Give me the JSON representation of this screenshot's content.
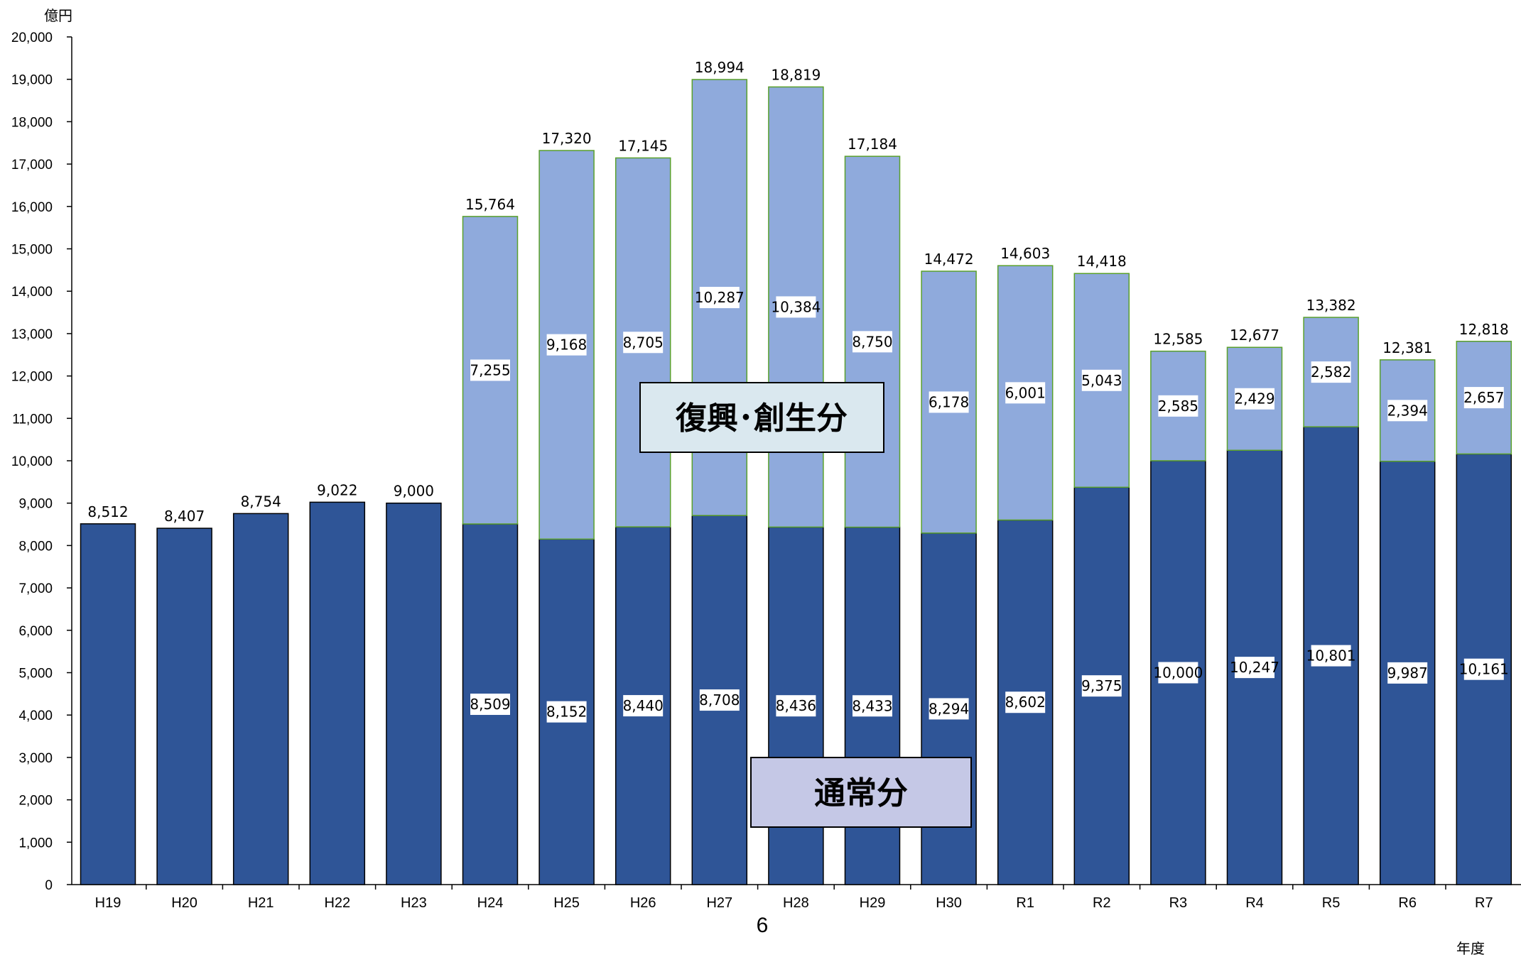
{
  "chart_data": {
    "type": "bar",
    "stacked": true,
    "ylabel": "億円",
    "xlabel": "年度",
    "ylim": [
      0,
      20000
    ],
    "ytick_step": 1000,
    "grid": false,
    "categories": [
      "H19",
      "H20",
      "H21",
      "H22",
      "H23",
      "H24",
      "H25",
      "H26",
      "H27",
      "H28",
      "H29",
      "H30",
      "R1",
      "R2",
      "R3",
      "R4",
      "R5",
      "R6",
      "R7"
    ],
    "series": [
      {
        "name": "通常分",
        "color": "#2f5597",
        "values": [
          8512,
          8407,
          8754,
          9022,
          9000,
          8509,
          8152,
          8440,
          8708,
          8436,
          8433,
          8294,
          8602,
          9375,
          10000,
          10247,
          10801,
          9987,
          10161
        ]
      },
      {
        "name": "復興･創生分",
        "color": "#8faadc",
        "values": [
          null,
          null,
          null,
          null,
          null,
          7255,
          9168,
          8705,
          10287,
          10384,
          8750,
          6178,
          6001,
          5043,
          2585,
          2429,
          2582,
          2394,
          2657
        ]
      }
    ],
    "totals": [
      8512,
      8407,
      8754,
      9022,
      9000,
      15764,
      17320,
      17145,
      18994,
      18819,
      17184,
      14472,
      14603,
      14418,
      12585,
      12677,
      13382,
      12381,
      12818
    ],
    "legend": {
      "recovery": {
        "label": "復興･創生分",
        "bg": "#dae8ef"
      },
      "normal": {
        "label": "通常分",
        "bg": "#c5c8e6"
      }
    }
  },
  "page_number": "6"
}
